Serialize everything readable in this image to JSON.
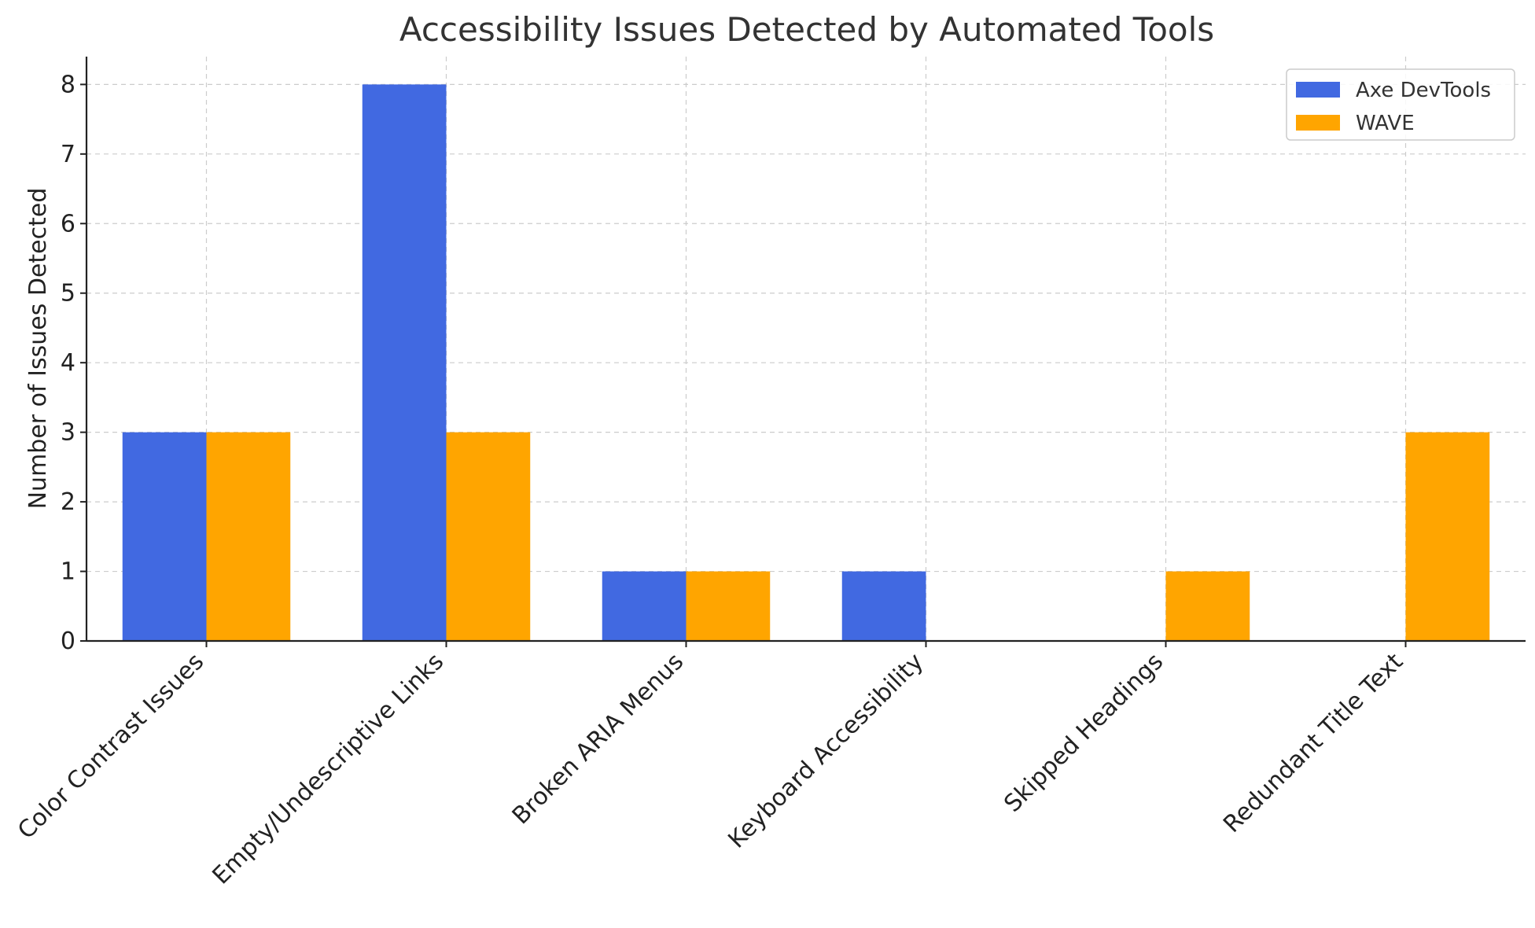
{
  "chart_data": {
    "type": "bar",
    "title": "Accessibility Issues Detected by Automated Tools",
    "xlabel": "",
    "ylabel": "Number of Issues Detected",
    "categories": [
      "Color Contrast Issues",
      "Empty/Undescriptive Links",
      "Broken ARIA Menus",
      "Keyboard Accessibility",
      "Skipped Headings",
      "Redundant Title Text"
    ],
    "series": [
      {
        "name": "Axe DevTools",
        "color": "#4169E1",
        "values": [
          3,
          8,
          1,
          1,
          0,
          0
        ]
      },
      {
        "name": "WAVE",
        "color": "#FFA500",
        "values": [
          3,
          3,
          1,
          0,
          1,
          3
        ]
      }
    ],
    "ylim": [
      0,
      8.4
    ],
    "yticks": [
      "0",
      "1",
      "2",
      "3",
      "4",
      "5",
      "6",
      "7",
      "8"
    ],
    "grid": true,
    "legend_position": "top-right"
  }
}
